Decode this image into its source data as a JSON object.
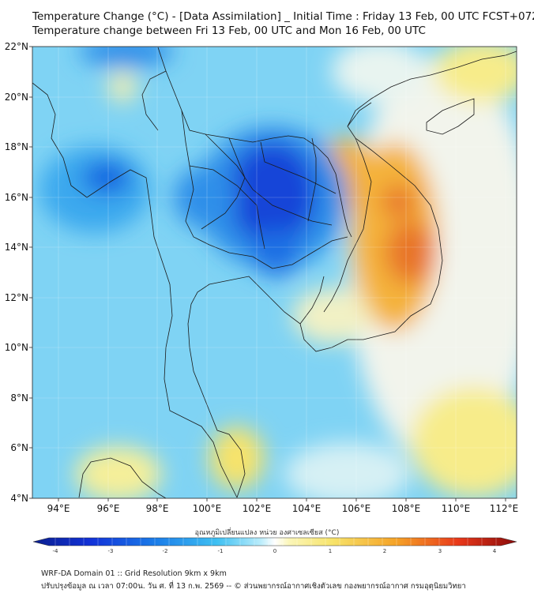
{
  "title_line1": "Temperature Change (°C) - [Data Assimilation] _ Initial Time : Friday 13 Feb, 00 UTC FCST+072",
  "title_line2": "Temperature change between Fri 13 Feb, 00 UTC and Mon 16 Feb, 00 UTC",
  "lat_labels": [
    "22°N",
    "20°N",
    "18°N",
    "16°N",
    "14°N",
    "12°N",
    "10°N",
    "8°N",
    "6°N",
    "4°N"
  ],
  "lon_labels": [
    "94°E",
    "96°E",
    "98°E",
    "100°E",
    "102°E",
    "104°E",
    "106°E",
    "108°E",
    "110°E",
    "112°E"
  ],
  "colorbar_title": "อุณหภูมิเปลี่ยนแปลง หน่วย องศาเซลเซียส (°C)",
  "colorbar_ticks": [
    "-4",
    "-3",
    "-2",
    "-1",
    "0",
    "1",
    "2",
    "3",
    "4"
  ],
  "colorbar_range": [
    -4,
    4
  ],
  "footer_line1": "WRF-DA Domain 01 :: Grid Resolution 9km x 9km",
  "footer_line2": "ปรับปรุงข้อมูล ณ เวลา 07:00น. วัน ศ. ที่ 13 ก.พ. 2569 -- © ส่วนพยากรณ์อากาศเชิงตัวเลข กองพยากรณ์อากาศ กรมอุตุนิยมวิทยา",
  "colors": {
    "strong_cooling": "#0a3fd6",
    "moderate_cooling": "#2aa6ee",
    "weak_cooling": "#9fdcf8",
    "neutral": "#f2f6f2",
    "weak_warming": "#f7ec8a",
    "moderate_warming": "#f4b23a",
    "strong_warming": "#e8742a",
    "border": "#1a1a1a"
  }
}
